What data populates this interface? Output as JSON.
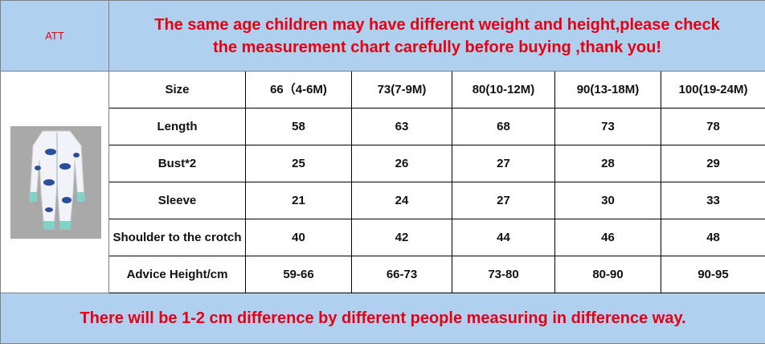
{
  "header": {
    "att": "ATT",
    "notice_lines": [
      "The same age children may have different weight and height,please check",
      "the measurement chart carefully before buying ,thank you!"
    ]
  },
  "table": {
    "rows": [
      [
        "Size",
        "66（4-6M)",
        "73(7-9M)",
        "80(10-12M)",
        "90(13-18M)",
        "100(19-24M)"
      ],
      [
        "Length",
        "58",
        "63",
        "68",
        "73",
        "78"
      ],
      [
        "Bust*2",
        "25",
        "26",
        "27",
        "28",
        "29"
      ],
      [
        "Sleeve",
        "21",
        "24",
        "27",
        "30",
        "33"
      ],
      [
        "Shoulder to the crotch",
        "40",
        "42",
        "44",
        "46",
        "48"
      ],
      [
        "Advice Height/cm",
        "59-66",
        "66-73",
        "73-80",
        "80-90",
        "90-95"
      ]
    ]
  },
  "footer": {
    "note": "There will be 1-2 cm difference by different people measuring in difference way."
  }
}
